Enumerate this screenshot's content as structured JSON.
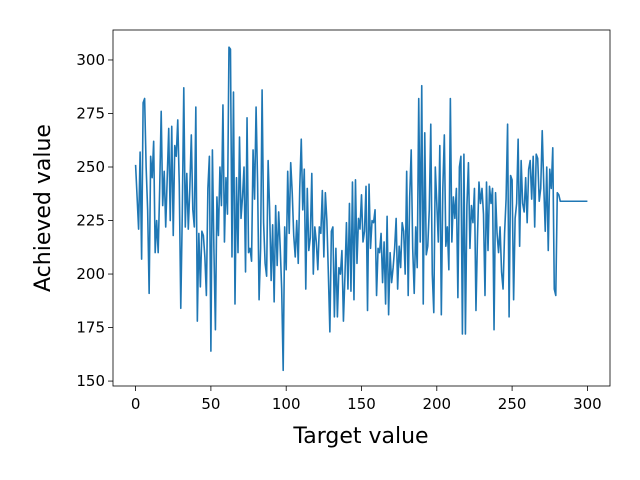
{
  "chart_data": {
    "type": "line",
    "xlabel": "Target value",
    "ylabel": "Achieved value",
    "x": [
      0,
      1,
      2,
      3,
      4,
      5,
      6,
      7,
      8,
      9,
      10,
      11,
      12,
      13,
      14,
      15,
      16,
      17,
      18,
      19,
      20,
      21,
      22,
      23,
      24,
      25,
      26,
      27,
      28,
      29,
      30,
      31,
      32,
      33,
      34,
      35,
      36,
      37,
      38,
      39,
      40,
      41,
      42,
      43,
      44,
      45,
      46,
      47,
      48,
      49,
      50,
      51,
      52,
      53,
      54,
      55,
      56,
      57,
      58,
      59,
      60,
      61,
      62,
      63,
      64,
      65,
      66,
      67,
      68,
      69,
      70,
      71,
      72,
      73,
      74,
      75,
      76,
      77,
      78,
      79,
      80,
      81,
      82,
      83,
      84,
      85,
      86,
      87,
      88,
      89,
      90,
      91,
      92,
      93,
      94,
      95,
      96,
      97,
      98,
      99,
      100,
      101,
      102,
      103,
      104,
      105,
      106,
      107,
      108,
      109,
      110,
      111,
      112,
      113,
      114,
      115,
      116,
      117,
      118,
      119,
      120,
      121,
      122,
      123,
      124,
      125,
      126,
      127,
      128,
      129,
      130,
      131,
      132,
      133,
      134,
      135,
      136,
      137,
      138,
      139,
      140,
      141,
      142,
      143,
      144,
      145,
      146,
      147,
      148,
      149,
      150,
      151,
      152,
      153,
      154,
      155,
      156,
      157,
      158,
      159,
      160,
      161,
      162,
      163,
      164,
      165,
      166,
      167,
      168,
      169,
      170,
      171,
      172,
      173,
      174,
      175,
      176,
      177,
      178,
      179,
      180,
      181,
      182,
      183,
      184,
      185,
      186,
      187,
      188,
      189,
      190,
      191,
      192,
      193,
      194,
      195,
      196,
      197,
      198,
      199,
      200,
      201,
      202,
      203,
      204,
      205,
      206,
      207,
      208,
      209,
      210,
      211,
      212,
      213,
      214,
      215,
      216,
      217,
      218,
      219,
      220,
      221,
      222,
      223,
      224,
      225,
      226,
      227,
      228,
      229,
      230,
      231,
      232,
      233,
      234,
      235,
      236,
      237,
      238,
      239,
      240,
      241,
      242,
      243,
      244,
      245,
      246,
      247,
      248,
      249,
      250,
      251,
      252,
      253,
      254,
      255,
      256,
      257,
      258,
      259,
      260,
      261,
      262,
      263,
      264,
      265,
      266,
      267,
      268,
      269,
      270,
      271,
      272,
      273,
      274,
      275,
      276,
      277,
      278,
      279,
      280,
      281,
      282,
      283,
      284,
      285,
      286,
      287,
      288,
      289,
      290,
      291,
      292,
      293,
      294,
      295,
      296,
      297,
      298,
      299,
      300
    ],
    "series": [
      {
        "color": "#1f77b4",
        "values": [
          251,
          236,
          221,
          257,
          207,
          280,
          282,
          250,
          230,
          191,
          255,
          245,
          262,
          210,
          225,
          210,
          240,
          276,
          232,
          248,
          222,
          245,
          268,
          225,
          269,
          218,
          260,
          255,
          272,
          242,
          184,
          228,
          287,
          222,
          247,
          221,
          240,
          265,
          230,
          222,
          278,
          178,
          219,
          194,
          220,
          218,
          208,
          190,
          240,
          255,
          164,
          258,
          212,
          174,
          236,
          218,
          250,
          232,
          279,
          215,
          245,
          228,
          306,
          305,
          208,
          285,
          186,
          245,
          210,
          264,
          226,
          236,
          250,
          201,
          273,
          210,
          212,
          206,
          258,
          235,
          278,
          243,
          188,
          212,
          286,
          224,
          205,
          199,
          253,
          230,
          197,
          223,
          187,
          232,
          204,
          229,
          213,
          193,
          155,
          222,
          202,
          248,
          219,
          252,
          238,
          218,
          208,
          225,
          205,
          240,
          263,
          230,
          249,
          193,
          240,
          211,
          217,
          247,
          200,
          222,
          215,
          202,
          222,
          219,
          239,
          208,
          238,
          225,
          200,
          173,
          220,
          222,
          180,
          212,
          180,
          203,
          200,
          211,
          178,
          199,
          224,
          193,
          233,
          192,
          243,
          188,
          244,
          205,
          226,
          221,
          237,
          215,
          220,
          241,
          183,
          242,
          212,
          225,
          224,
          230,
          190,
          212,
          210,
          219,
          196,
          215,
          186,
          227,
          181,
          210,
          196,
          203,
          212,
          226,
          193,
          213,
          203,
          224,
          220,
          200,
          248,
          190,
          236,
          258,
          212,
          191,
          222,
          203,
          282,
          215,
          288,
          186,
          266,
          209,
          213,
          230,
          270,
          200,
          182,
          250,
          233,
          215,
          260,
          181,
          240,
          265,
          213,
          222,
          202,
          282,
          215,
          236,
          226,
          240,
          189,
          250,
          255,
          172,
          256,
          172,
          232,
          252,
          212,
          232,
          224,
          240,
          183,
          217,
          243,
          233,
          240,
          228,
          190,
          243,
          211,
          241,
          233,
          240,
          174,
          238,
          219,
          210,
          222,
          201,
          193,
          219,
          235,
          270,
          180,
          246,
          244,
          188,
          226,
          233,
          263,
          213,
          253,
          233,
          229,
          245,
          224,
          249,
          253,
          235,
          255,
          222,
          256,
          254,
          234,
          240,
          267,
          242,
          220,
          250,
          211,
          249,
          240,
          259,
          193,
          190,
          238,
          237,
          234,
          234,
          234,
          234,
          234,
          234,
          234,
          234,
          234,
          234,
          234,
          234,
          234,
          234,
          234,
          234,
          234,
          234,
          234
        ]
      }
    ],
    "xlim": [
      -15,
      315
    ],
    "ylim": [
      147.7,
      314
    ],
    "xticks": [
      0,
      50,
      100,
      150,
      200,
      250,
      300
    ],
    "yticks": [
      150,
      175,
      200,
      225,
      250,
      275,
      300
    ]
  }
}
